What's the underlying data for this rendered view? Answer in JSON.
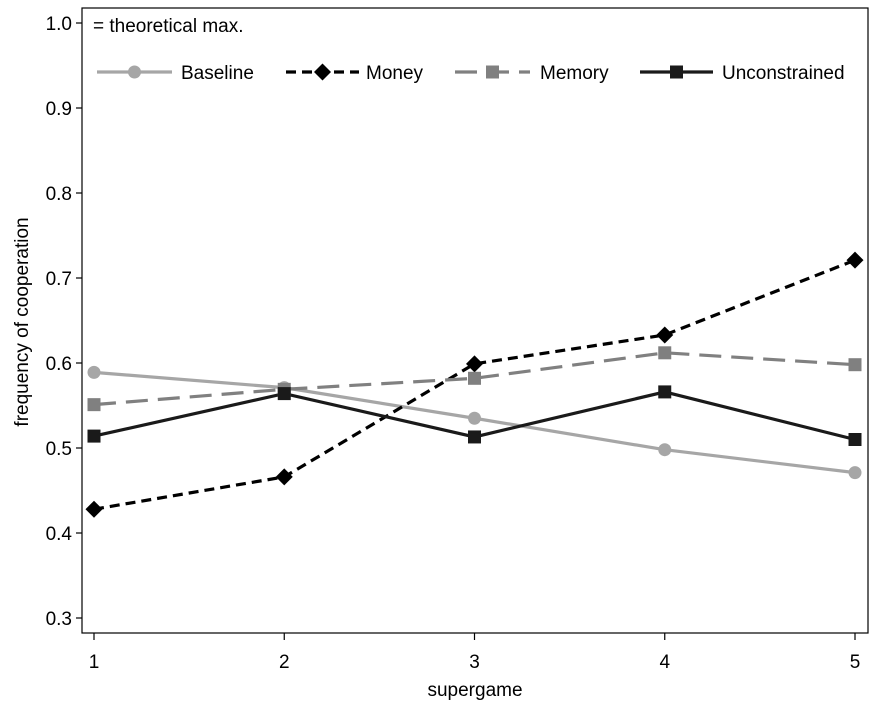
{
  "chart_data": {
    "type": "line",
    "xlabel": "supergame",
    "ylabel": "frequency of cooperation",
    "x": [
      1,
      2,
      3,
      4,
      5
    ],
    "xlim": [
      1,
      5
    ],
    "ylim": [
      0.3,
      1.0
    ],
    "x_ticks": [
      "1",
      "2",
      "3",
      "4",
      "5"
    ],
    "y_ticks": [
      {
        "value": 0.3,
        "label": "0.3"
      },
      {
        "value": 0.4,
        "label": "0.4"
      },
      {
        "value": 0.5,
        "label": "0.5"
      },
      {
        "value": 0.6,
        "label": "0.6"
      },
      {
        "value": 0.7,
        "label": "0.7"
      },
      {
        "value": 0.8,
        "label": "0.8"
      },
      {
        "value": 0.9,
        "label": "0.9"
      },
      {
        "value": 1.0,
        "label": "1.0"
      }
    ],
    "grid": false,
    "legend_position": "top",
    "annotation": "= theoretical max.",
    "series": [
      {
        "name": "Baseline",
        "values": [
          0.589,
          0.571,
          0.535,
          0.498,
          0.471
        ],
        "color": "#a6a6a6",
        "dash": "solid",
        "marker": "circle"
      },
      {
        "name": "Money",
        "values": [
          0.428,
          0.466,
          0.599,
          0.633,
          0.721
        ],
        "color": "#000000",
        "dash": "short-dash",
        "marker": "diamond"
      },
      {
        "name": "Memory",
        "values": [
          0.551,
          0.569,
          0.582,
          0.612,
          0.598
        ],
        "color": "#808080",
        "dash": "long-dash",
        "marker": "square"
      },
      {
        "name": "Unconstrained",
        "values": [
          0.514,
          0.564,
          0.513,
          0.566,
          0.51
        ],
        "color": "#1a1a1a",
        "dash": "solid",
        "marker": "square"
      }
    ]
  }
}
